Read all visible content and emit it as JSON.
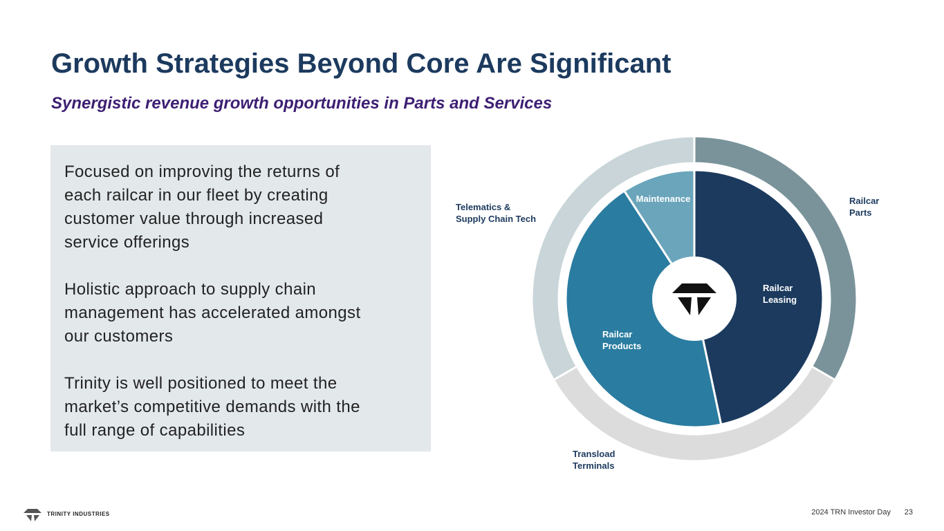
{
  "header": {
    "title": "Growth Strategies Beyond Core Are Significant",
    "subtitle": "Synergistic revenue growth opportunities in Parts and Services"
  },
  "body": {
    "paragraphs": [
      [
        "Focused on improving the returns of",
        "each railcar in our fleet by creating",
        "customer value through increased",
        "service offerings"
      ],
      [
        "Holistic approach to supply chain",
        "management has accelerated amongst",
        "our customers"
      ],
      [
        "Trinity is well positioned to meet the",
        "market’s competitive demands with the",
        "full range of capabilities"
      ]
    ]
  },
  "diagram": {
    "outer_ring": [
      [
        "Railcar",
        "Parts"
      ],
      [
        "Transload",
        "Terminals"
      ],
      [
        "Telematics &",
        "Supply Chain Tech"
      ]
    ],
    "inner_pie": [
      [
        "Railcar",
        "Leasing"
      ],
      [
        "Railcar",
        "Products"
      ],
      [
        "Maintenance"
      ]
    ]
  },
  "footer": {
    "brand": "TRINITY INDUSTRIES",
    "event": "2024 TRN Investor Day",
    "page": "23"
  }
}
